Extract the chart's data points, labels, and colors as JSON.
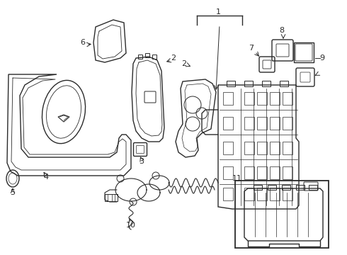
{
  "bg_color": "#ffffff",
  "line_color": "#2a2a2a",
  "lw": 1.0,
  "fig_w": 4.9,
  "fig_h": 3.6,
  "dpi": 100
}
